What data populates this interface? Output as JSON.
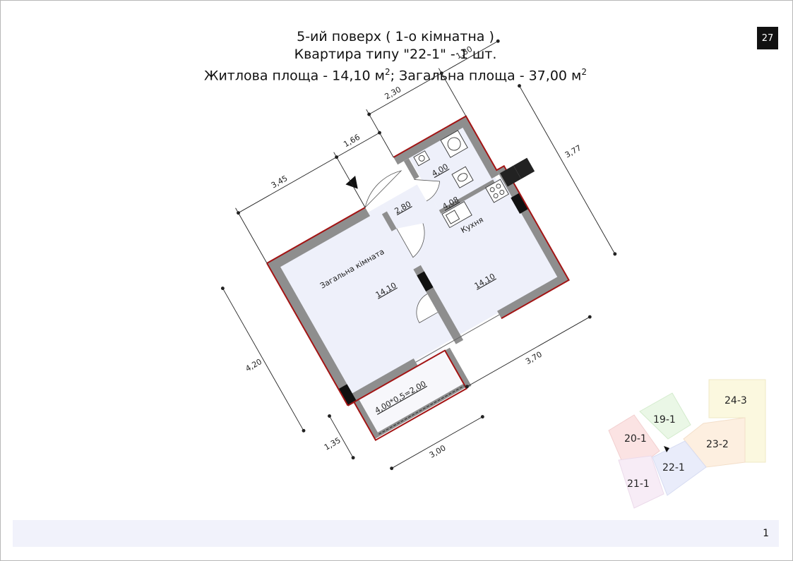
{
  "header": {
    "line1": "5-ий поверх ( 1-о кімнатна )",
    "line2": "Квартира типу \"22-1\" - 1 шт.",
    "line3_text": "Житлова площа - 14,10 м",
    "line3_mid": "; Загальна площа - 37,00 м",
    "superscript": "2"
  },
  "page_badge": "27",
  "plan": {
    "dimensions": {
      "d345": "3,45",
      "d166": "1,66",
      "d230": "2,30",
      "d180": "1,80",
      "d377": "3,77",
      "d420": "4,20",
      "d135": "1,35",
      "d300": "3,00",
      "d370": "3,70"
    },
    "rooms": {
      "living_room_name": "Загальна кімната",
      "living_room_area": "14,10",
      "corridor_area": "2,80",
      "bathroom_area": "4,00",
      "kitchen_area_small": "4,08",
      "kitchen_name": "Кухня",
      "kitchen_area": "14,10",
      "balcony_formula": "4,00*0,5=2,00"
    }
  },
  "key_plan": {
    "units": [
      "19-1",
      "20-1",
      "21-1",
      "22-1",
      "23-2",
      "24-3"
    ],
    "colors": {
      "19-1": "#eaf7e6",
      "20-1": "#fbe3e3",
      "21-1": "#f7ecf6",
      "22-1": "#e9ecfa",
      "23-2": "#fdefe0",
      "24-3": "#fbf8df"
    }
  },
  "footer": {
    "page_number": "1"
  },
  "colors": {
    "wall": "#8e8e8e",
    "outline": "#a31414",
    "floor": "#f1f2fb",
    "column": "#111111"
  }
}
